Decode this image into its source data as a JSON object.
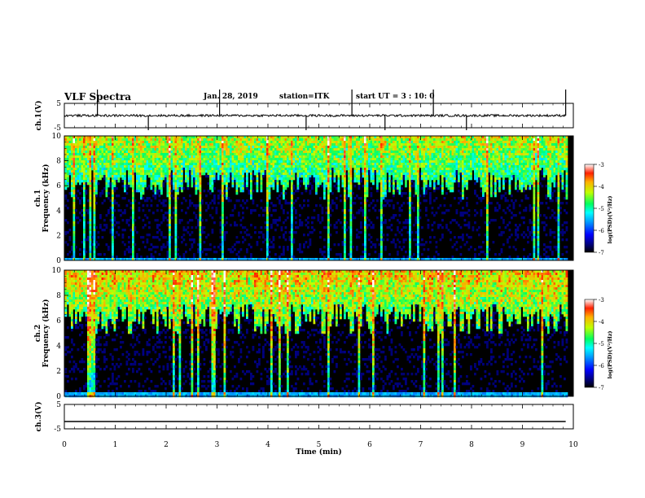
{
  "header": {
    "title": "VLF Spectra",
    "date": "Jan. 28, 2019",
    "station": "station=ITK",
    "start": "start UT =  3 : 10: 0"
  },
  "chart_data": [
    {
      "type": "line",
      "panel": "ch1-waveform",
      "ylabel": "ch.1(V)",
      "ylim": [
        -5,
        5
      ],
      "yticks": [
        "5",
        "-5"
      ],
      "xlim": [
        0,
        10
      ],
      "baseline": 0,
      "description_values": {
        "spikes_min": [
          0.65,
          1.65,
          3.05,
          4.75,
          5.65,
          6.3,
          7.25,
          7.9,
          9.85
        ]
      }
    },
    {
      "type": "heatmap",
      "panel": "ch1-spectrogram",
      "ylabel": "ch.1\nFrequency (kHz)",
      "ylim": [
        0,
        10
      ],
      "yticks": [
        "0",
        "2",
        "4",
        "6",
        "8",
        "10"
      ],
      "xlim": [
        0,
        9.85
      ],
      "colorbar": {
        "label": "log(PSD)(V²/Hz)",
        "range": [
          -7,
          -3
        ],
        "ticks": [
          "-3",
          "-4",
          "-5",
          "-6",
          "-7"
        ]
      }
    },
    {
      "type": "heatmap",
      "panel": "ch2-spectrogram",
      "ylabel": "ch.2\nFrequency (kHz)",
      "ylim": [
        0,
        10
      ],
      "yticks": [
        "0",
        "2",
        "4",
        "6",
        "8",
        "10"
      ],
      "xlim": [
        0,
        9.85
      ],
      "colorbar": {
        "label": "log(PSD)(V²/Hz)",
        "range": [
          -7,
          -3
        ],
        "ticks": [
          "-3",
          "-4",
          "-5",
          "-6",
          "-7"
        ]
      }
    },
    {
      "type": "line",
      "panel": "ch3-waveform",
      "ylabel": "ch.3(V)",
      "ylim": [
        -5,
        5
      ],
      "yticks": [
        "5",
        "-5"
      ],
      "xlim": [
        0,
        9.85
      ],
      "baseline": -2
    }
  ],
  "xaxis": {
    "label": "Time (min)",
    "range": [
      0,
      10
    ],
    "ticks": [
      "0",
      "1",
      "2",
      "3",
      "4",
      "5",
      "6",
      "7",
      "8",
      "9",
      "10"
    ]
  }
}
